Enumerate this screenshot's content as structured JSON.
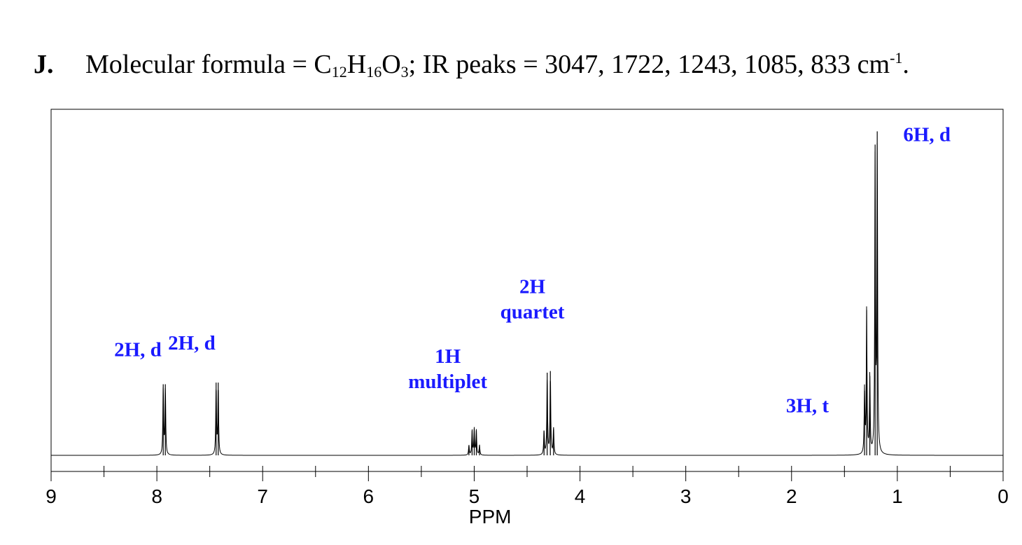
{
  "header": {
    "letter": "J.",
    "formula_prefix": "Molecular formula = C",
    "c_sub": "12",
    "h": "H",
    "h_sub": "16",
    "o": "O",
    "o_sub": "3",
    "ir_text": "; IR peaks = 3047, 1722, 1243, 1085, 833 cm",
    "ir_sup": "-1",
    "end": "."
  },
  "chart_data": {
    "type": "line",
    "title": "",
    "xlabel": "PPM",
    "ylabel": "",
    "xlim": [
      9,
      0
    ],
    "x_reversed": true,
    "ylim": [
      0,
      1.0
    ],
    "grid": false,
    "x_ticks": [
      9,
      8,
      7,
      6,
      5,
      4,
      3,
      2,
      1,
      0
    ],
    "x_minor_ticks": [
      8.5,
      7.5,
      6.5,
      5.5,
      4.5,
      3.5,
      2.5,
      1.5,
      0.5
    ],
    "series": [
      {
        "peaks": [
          {
            "ppm": 7.94,
            "height": 0.215
          },
          {
            "ppm": 7.92,
            "height": 0.215
          },
          {
            "ppm": 7.44,
            "height": 0.22
          },
          {
            "ppm": 7.42,
            "height": 0.22
          },
          {
            "ppm": 5.05,
            "height": 0.03
          },
          {
            "ppm": 5.02,
            "height": 0.075
          },
          {
            "ppm": 5.0,
            "height": 0.08
          },
          {
            "ppm": 4.98,
            "height": 0.075
          },
          {
            "ppm": 4.95,
            "height": 0.03
          },
          {
            "ppm": 4.34,
            "height": 0.075
          },
          {
            "ppm": 4.31,
            "height": 0.25
          },
          {
            "ppm": 4.28,
            "height": 0.255
          },
          {
            "ppm": 4.25,
            "height": 0.085
          },
          {
            "ppm": 1.31,
            "height": 0.195
          },
          {
            "ppm": 1.29,
            "height": 0.44
          },
          {
            "ppm": 1.26,
            "height": 0.24
          },
          {
            "ppm": 1.21,
            "height": 0.94
          },
          {
            "ppm": 1.19,
            "height": 0.98
          }
        ]
      }
    ],
    "annotations": [
      {
        "text": [
          "2H, d"
        ],
        "x": 8.18,
        "y": 0.3
      },
      {
        "text": [
          "2H, d"
        ],
        "x": 7.67,
        "y": 0.32
      },
      {
        "text": [
          "1H",
          "multiplet"
        ],
        "x": 5.25,
        "y": 0.28
      },
      {
        "text": [
          "2H",
          "quartet"
        ],
        "x": 4.45,
        "y": 0.49
      },
      {
        "text": [
          "3H, t"
        ],
        "x": 1.85,
        "y": 0.13
      },
      {
        "text": [
          "6H, d"
        ],
        "x": 0.72,
        "y": 0.95
      }
    ]
  }
}
